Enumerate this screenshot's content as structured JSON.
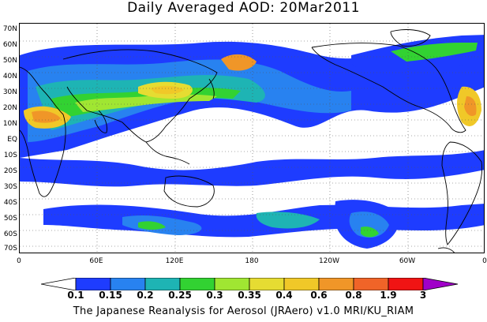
{
  "map": {
    "title": "Daily Averaged AOD: 20Mar2011",
    "lat_labels": [
      "70N",
      "60N",
      "50N",
      "40N",
      "30N",
      "20N",
      "10N",
      "EQ",
      "10S",
      "20S",
      "30S",
      "40S",
      "50S",
      "60S",
      "70S"
    ],
    "lon_labels": [
      "0",
      "60E",
      "120E",
      "180",
      "120W",
      "60W",
      "0"
    ],
    "credit": "The Japanese Reanalysis for Aerosol (JRAero) v1.0 MRI/KU_RIAM",
    "legend": {
      "labels": [
        "0.1",
        "0.15",
        "0.2",
        "0.25",
        "0.3",
        "0.35",
        "0.4",
        "0.6",
        "0.8",
        "1.9",
        "3"
      ],
      "colors": [
        "#ffffff",
        "#1e3cff",
        "#2882f0",
        "#1eb4b4",
        "#32d232",
        "#a0e632",
        "#e6dc32",
        "#f0c828",
        "#f09628",
        "#f06428",
        "#f01414",
        "#a000c8"
      ]
    },
    "features": {
      "gridlines": "dotted",
      "coastlines": true
    }
  }
}
